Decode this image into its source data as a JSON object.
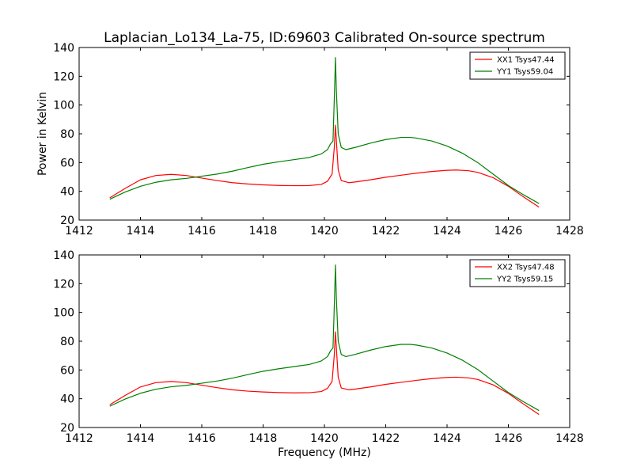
{
  "title": "Laplacian_Lo134_La-75, ID:69603 Calibrated On-source spectrum",
  "colors": {
    "red": "#ff0000",
    "green": "#008000"
  },
  "chart_data": [
    {
      "type": "line",
      "title": "Laplacian_Lo134_La-75, ID:69603 Calibrated On-source spectrum",
      "xlabel": "",
      "ylabel": "Power in Kelvin",
      "xlim": [
        1412,
        1428
      ],
      "ylim": [
        20,
        140
      ],
      "xticks": [
        1412,
        1414,
        1416,
        1418,
        1420,
        1422,
        1424,
        1426,
        1428
      ],
      "yticks": [
        20,
        40,
        60,
        80,
        100,
        120,
        140
      ],
      "legend": "top-right",
      "grid": false,
      "series": [
        {
          "name": "XX1 Tsys47.44",
          "color": "#ff0000",
          "points": [
            [
              1413.0,
              35.5
            ],
            [
              1413.5,
              42.0
            ],
            [
              1414.0,
              48.0
            ],
            [
              1414.5,
              51.0
            ],
            [
              1415.0,
              51.8
            ],
            [
              1415.5,
              51.0
            ],
            [
              1416.0,
              49.2
            ],
            [
              1416.5,
              47.5
            ],
            [
              1417.0,
              46.0
            ],
            [
              1417.5,
              45.1
            ],
            [
              1418.0,
              44.5
            ],
            [
              1418.5,
              44.1
            ],
            [
              1419.0,
              43.9
            ],
            [
              1419.5,
              44.0
            ],
            [
              1419.9,
              44.8
            ],
            [
              1420.1,
              47.0
            ],
            [
              1420.25,
              52.0
            ],
            [
              1420.32,
              70.0
            ],
            [
              1420.36,
              86.0
            ],
            [
              1420.4,
              72.0
            ],
            [
              1420.45,
              55.0
            ],
            [
              1420.55,
              47.5
            ],
            [
              1420.8,
              46.0
            ],
            [
              1421.0,
              46.5
            ],
            [
              1421.5,
              48.0
            ],
            [
              1422.0,
              49.8
            ],
            [
              1422.5,
              51.2
            ],
            [
              1423.0,
              52.6
            ],
            [
              1423.5,
              53.8
            ],
            [
              1424.0,
              54.6
            ],
            [
              1424.3,
              54.8
            ],
            [
              1424.7,
              54.3
            ],
            [
              1425.0,
              53.2
            ],
            [
              1425.5,
              49.5
            ],
            [
              1426.0,
              43.5
            ],
            [
              1426.5,
              36.0
            ],
            [
              1427.0,
              29.0
            ]
          ]
        },
        {
          "name": "YY1 Tsys59.04",
          "color": "#008000",
          "points": [
            [
              1413.0,
              34.5
            ],
            [
              1413.5,
              39.5
            ],
            [
              1414.0,
              43.5
            ],
            [
              1414.5,
              46.3
            ],
            [
              1415.0,
              48.0
            ],
            [
              1415.5,
              49.0
            ],
            [
              1416.0,
              50.5
            ],
            [
              1416.5,
              52.0
            ],
            [
              1417.0,
              54.0
            ],
            [
              1417.5,
              56.5
            ],
            [
              1418.0,
              58.8
            ],
            [
              1418.5,
              60.5
            ],
            [
              1419.0,
              62.0
            ],
            [
              1419.5,
              63.5
            ],
            [
              1419.9,
              66.0
            ],
            [
              1420.1,
              69.0
            ],
            [
              1420.2,
              73.0
            ],
            [
              1420.28,
              75.0
            ],
            [
              1420.33,
              110.0
            ],
            [
              1420.36,
              133.0
            ],
            [
              1420.39,
              110.0
            ],
            [
              1420.45,
              80.0
            ],
            [
              1420.55,
              70.5
            ],
            [
              1420.7,
              69.0
            ],
            [
              1421.0,
              70.5
            ],
            [
              1421.5,
              73.5
            ],
            [
              1422.0,
              76.0
            ],
            [
              1422.5,
              77.5
            ],
            [
              1422.8,
              77.5
            ],
            [
              1423.0,
              77.0
            ],
            [
              1423.5,
              75.0
            ],
            [
              1424.0,
              71.5
            ],
            [
              1424.5,
              66.5
            ],
            [
              1425.0,
              60.0
            ],
            [
              1425.5,
              52.0
            ],
            [
              1426.0,
              44.0
            ],
            [
              1426.5,
              37.5
            ],
            [
              1427.0,
              31.5
            ]
          ]
        }
      ]
    },
    {
      "type": "line",
      "title": "",
      "xlabel": "Frequency (MHz)",
      "ylabel": "",
      "xlim": [
        1412,
        1428
      ],
      "ylim": [
        20,
        140
      ],
      "xticks": [
        1412,
        1414,
        1416,
        1418,
        1420,
        1422,
        1424,
        1426,
        1428
      ],
      "yticks": [
        20,
        40,
        60,
        80,
        100,
        120,
        140
      ],
      "legend": "top-right",
      "grid": false,
      "series": [
        {
          "name": "XX2 Tsys47.48",
          "color": "#ff0000",
          "points": [
            [
              1413.0,
              35.8
            ],
            [
              1413.5,
              42.3
            ],
            [
              1414.0,
              48.2
            ],
            [
              1414.5,
              51.2
            ],
            [
              1415.0,
              52.0
            ],
            [
              1415.5,
              51.2
            ],
            [
              1416.0,
              49.4
            ],
            [
              1416.5,
              47.7
            ],
            [
              1417.0,
              46.2
            ],
            [
              1417.5,
              45.3
            ],
            [
              1418.0,
              44.7
            ],
            [
              1418.5,
              44.3
            ],
            [
              1419.0,
              44.1
            ],
            [
              1419.5,
              44.2
            ],
            [
              1419.9,
              45.0
            ],
            [
              1420.1,
              47.2
            ],
            [
              1420.25,
              52.0
            ],
            [
              1420.32,
              70.0
            ],
            [
              1420.36,
              86.5
            ],
            [
              1420.4,
              72.0
            ],
            [
              1420.45,
              55.0
            ],
            [
              1420.55,
              47.5
            ],
            [
              1420.8,
              46.2
            ],
            [
              1421.0,
              46.7
            ],
            [
              1421.5,
              48.2
            ],
            [
              1422.0,
              50.0
            ],
            [
              1422.5,
              51.4
            ],
            [
              1423.0,
              52.8
            ],
            [
              1423.5,
              54.0
            ],
            [
              1424.0,
              54.8
            ],
            [
              1424.3,
              55.0
            ],
            [
              1424.7,
              54.5
            ],
            [
              1425.0,
              53.4
            ],
            [
              1425.5,
              49.7
            ],
            [
              1426.0,
              43.7
            ],
            [
              1426.5,
              36.2
            ],
            [
              1427.0,
              29.0
            ]
          ]
        },
        {
          "name": "YY2 Tsys59.15",
          "color": "#008000",
          "points": [
            [
              1413.0,
              34.8
            ],
            [
              1413.5,
              39.8
            ],
            [
              1414.0,
              43.8
            ],
            [
              1414.5,
              46.6
            ],
            [
              1415.0,
              48.3
            ],
            [
              1415.5,
              49.3
            ],
            [
              1416.0,
              50.8
            ],
            [
              1416.5,
              52.3
            ],
            [
              1417.0,
              54.3
            ],
            [
              1417.5,
              56.8
            ],
            [
              1418.0,
              59.1
            ],
            [
              1418.5,
              60.8
            ],
            [
              1419.0,
              62.3
            ],
            [
              1419.5,
              63.8
            ],
            [
              1419.9,
              66.3
            ],
            [
              1420.1,
              69.3
            ],
            [
              1420.2,
              73.3
            ],
            [
              1420.28,
              75.3
            ],
            [
              1420.33,
              110.0
            ],
            [
              1420.36,
              133.0
            ],
            [
              1420.39,
              110.0
            ],
            [
              1420.45,
              80.0
            ],
            [
              1420.55,
              70.8
            ],
            [
              1420.7,
              69.3
            ],
            [
              1421.0,
              70.8
            ],
            [
              1421.5,
              73.8
            ],
            [
              1422.0,
              76.3
            ],
            [
              1422.5,
              77.8
            ],
            [
              1422.8,
              77.8
            ],
            [
              1423.0,
              77.3
            ],
            [
              1423.5,
              75.3
            ],
            [
              1424.0,
              71.8
            ],
            [
              1424.5,
              66.8
            ],
            [
              1425.0,
              60.3
            ],
            [
              1425.5,
              52.3
            ],
            [
              1426.0,
              44.3
            ],
            [
              1426.5,
              37.8
            ],
            [
              1427.0,
              31.8
            ]
          ]
        }
      ]
    }
  ]
}
